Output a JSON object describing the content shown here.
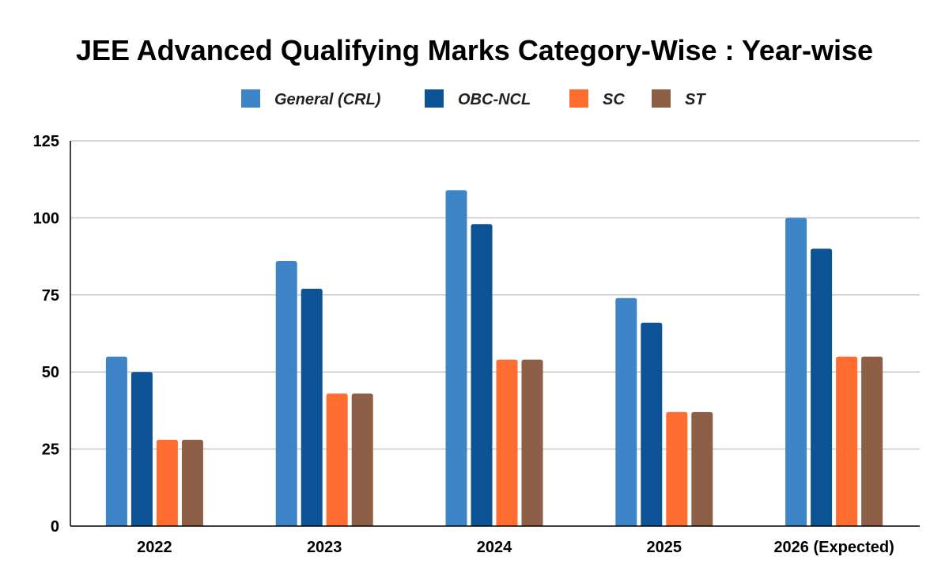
{
  "colors": {
    "general": "#3d85c6",
    "obc": "#0b5394",
    "sc": "#ff6d31",
    "st": "#8d5f46"
  },
  "chart_data": {
    "type": "bar",
    "title": "JEE Advanced Qualifying Marks Category-Wise : Year-wise",
    "xlabel": "",
    "ylabel": "",
    "categories": [
      "2022",
      "2023",
      "2024",
      "2025",
      "2026 (Expected)"
    ],
    "series": [
      {
        "name": "General (CRL)",
        "color": "#3d85c6",
        "values": [
          55,
          86,
          109,
          74,
          100
        ]
      },
      {
        "name": "OBC-NCL",
        "color": "#0b5394",
        "values": [
          50,
          77,
          98,
          66,
          90
        ]
      },
      {
        "name": "SC",
        "color": "#ff6d31",
        "values": [
          28,
          43,
          54,
          37,
          55
        ]
      },
      {
        "name": "ST",
        "color": "#8d5f46",
        "values": [
          28,
          43,
          54,
          37,
          55
        ]
      }
    ],
    "ylim": [
      0,
      125
    ],
    "yticks": [
      "0",
      "25",
      "50",
      "75",
      "100",
      "125"
    ],
    "grid": true,
    "legend_position": "top-center"
  }
}
